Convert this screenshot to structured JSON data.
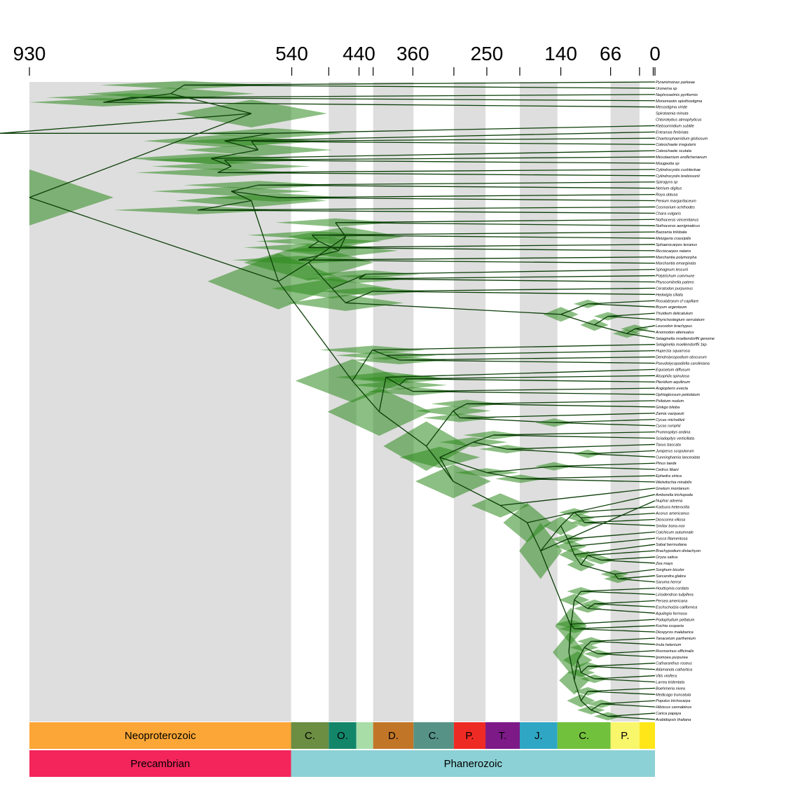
{
  "axis_ticks_labeled": [
    "930",
    "540",
    "440",
    "360",
    "250",
    "140",
    "66",
    "0"
  ],
  "axis": {
    "labeled_values": [
      930,
      540,
      440,
      360,
      250,
      140,
      66,
      0
    ],
    "minor_values": [
      485,
      419,
      299,
      201,
      23,
      2.6
    ]
  },
  "periods": [
    {
      "label": "Neoproterozoic",
      "start": 930,
      "end": 541,
      "color": "#FBA636"
    },
    {
      "label": "C.",
      "start": 541,
      "end": 485,
      "color": "#6B8E42"
    },
    {
      "label": "O.",
      "start": 485,
      "end": 444,
      "color": "#13866A"
    },
    {
      "label": "",
      "start": 444,
      "end": 419,
      "color": "#A8DDA8"
    },
    {
      "label": "D.",
      "start": 419,
      "end": 359,
      "color": "#C17526"
    },
    {
      "label": "C.",
      "start": 359,
      "end": 299,
      "color": "#569386"
    },
    {
      "label": "P.",
      "start": 299,
      "end": 252,
      "color": "#EE2A24"
    },
    {
      "label": "T.",
      "start": 252,
      "end": 201,
      "color": "#7D1A88"
    },
    {
      "label": "J.",
      "start": 201,
      "end": 145,
      "color": "#2FA7C4"
    },
    {
      "label": "C.",
      "start": 145,
      "end": 66,
      "color": "#72C13C"
    },
    {
      "label": "P.",
      "start": 66,
      "end": 23,
      "color": "#F8F66B"
    },
    {
      "label": "",
      "start": 23,
      "end": 0,
      "color": "#FFE619"
    }
  ],
  "eras": [
    {
      "label": "Precambrian",
      "start": 930,
      "end": 541,
      "color": "#F3255B"
    },
    {
      "label": "Phanerozoic",
      "start": 541,
      "end": 0,
      "color": "#8CD1D5"
    }
  ],
  "gray_bands": [
    [
      930,
      541
    ],
    [
      485,
      444
    ],
    [
      419,
      359
    ],
    [
      299,
      252
    ],
    [
      201,
      145
    ],
    [
      66,
      23
    ]
  ],
  "colors": {
    "band": "#DEDEDE",
    "ci": "#2E8B1E",
    "branch": "#0C3F08"
  },
  "taxa": [
    "Pyramimonas parkeae",
    "Uronema sp",
    "Nephroselmis pyriformis",
    "Monomastix opisthostigma",
    "Mesostigma viride",
    "Spirotaenia minuta",
    "Chlorokybus atmophyticus",
    "Klebsormidium subtile",
    "Entransia fimbriata",
    "Chaetosphaeridium globosum",
    "Coleochaete irregularis",
    "Coleochaete scutata",
    "Mesotaenium endlicherianum",
    "Mougeotia sp",
    "Cylindrocystis cushleckae",
    "Cylindrocystis brebissonii",
    "Spirogyra sp",
    "Netrium digitus",
    "Roya obtusa",
    "Penium margaritaceum",
    "Cosmarium ochthodes",
    "Chara vulgaris",
    "Nothoceros vincentianus",
    "Nothoceros aenigmaticus",
    "Bazzania trilobata",
    "Metzgeria crassipilis",
    "Sphaerocarpos texanus",
    "Ricciocarpos natans",
    "Marchantia polymorpha",
    "Marchantia emarginata",
    "Sphagnum lescurii",
    "Polytrichum commune",
    "Physcomitrella patens",
    "Ceratodon purpureus",
    "Hedwigia ciliata",
    "Rosulabryum cf capillare",
    "Bryum argenteum",
    "Thuidium delicatulum",
    "Rhynchostegium serrulatum",
    "Leucodon brachypus",
    "Anomodon attenuatus",
    "Selaginella moellendorffii genome",
    "Selaginella moellendorffii 1kp",
    "Huperzia squarrosa",
    "Dendrolycopodium obscurum",
    "Pseudolycopodiella caroliniana",
    "Equisetum diffusum",
    "Alsophila spinulosa",
    "Pteridium aquilinum",
    "Angiopteris evecta",
    "Ophioglossum petiolatum",
    "Psilotum nudum",
    "Ginkgo biloba",
    "Zamia vazquezii",
    "Cycas micholitzii",
    "Cycas rumphii",
    "Prumnopitys andina",
    "Sciadopitys verticillata",
    "Taxus baccata",
    "Juniperus scopulorum",
    "Cunninghamia lanceolata",
    "Pinus taeda",
    "Cedrus libani",
    "Ephedra sinica",
    "Welwitschia mirabilis",
    "Gnetum montanum",
    "Amborella trichopoda",
    "Nuphar advena",
    "Kadsura heteroclita",
    "Acorus americanus",
    "Dioscorea villosa",
    "Smilax bona-nox",
    "Colchicum autumnale",
    "Yucca filamentosa",
    "Sabal bermudana",
    "Brachypodium distachyon",
    "Oryza sativa",
    "Zea mays",
    "Sorghum bicolor",
    "Sarcandra glabra",
    "Saruma henryi",
    "Houttuynia cordata",
    "Liriodendron tulipifera",
    "Persea americana",
    "Eschscholzia californica",
    "Aquilegia formosa",
    "Podophyllum peltatum",
    "Kochia scoparia",
    "Diospyros malabarica",
    "Tanacetum parthenium",
    "Inula helenium",
    "Rosmarinus officinalis",
    "Ipomoea purpurea",
    "Catharanthus roseus",
    "Allamanda cathartica",
    "Vitis vinifera",
    "Larrea tridentata",
    "Boehmeria nivea",
    "Medicago truncatula",
    "Populus trichocarpa",
    "Hibiscus cannabinus",
    "Carica papaya",
    "Arabidopsis thaliana"
  ],
  "tree": [
    930,
    [
      600,
      [
        720,
        [
          700,
          0,
          1
        ],
        [
          820,
          [
            780,
            2,
            3
          ],
          4
        ]
      ],
      [
        [
          520,
          5,
          6
        ],
        [
          570,
          7,
          [
            640,
            8,
            [
              590,
              [
                600,
                9,
                10
              ],
              [
                660,
                11,
                [
                  630,
                  [
                    640,
                    12,
                    13
                  ],
                  [
                    650,
                    14,
                    15
                  ]
                ]
              ]
            ]
          ]
        ]
      ]
    ],
    [
      560,
      [
        600,
        [
          630,
          [
            590,
            16,
            17
          ],
          [
            560,
            18,
            19
          ]
        ],
        [
          680,
          20,
          21
        ]
      ],
      [
        515,
        [
          460,
          [
            475,
            22,
            23
          ],
          [
            470,
            [
              500,
              [
                510,
                24,
                25
              ],
              [
                515,
                26,
                27
              ]
            ],
            [
              530,
              28,
              29
            ]
          ]
        ],
        [
          480,
          [
            430,
            30,
            [
              440,
              31,
              32
            ]
          ],
          [
            460,
            [
              420,
              33,
              34
            ],
            [
              140,
              [
                100,
                35,
                36
              ],
              [
                90,
                [
                  70,
                  37,
                  38
                ],
                [
                  42,
                  [
                    30,
                    39,
                    40
                  ],
                  41
                ]
              ]
            ]
          ]
        ]
      ],
      [
        450,
        [
          420,
          42,
          [
            400,
            43,
            [
              380,
              44,
              45
            ]
          ]
        ],
        [
          410,
          [
            400,
            46,
            [
              380,
              [
                370,
                47,
                48
              ],
              [
                360,
                49,
                50
              ]
            ]
          ],
          [
            340,
            [
              300,
              [
                280,
                51,
                52
              ],
              [
                290,
                53,
                [
                  150,
                  54,
                  55
                ]
              ]
            ],
            [
              300,
              [
                320,
                [
                  270,
                  [
                    240,
                    56,
                    57
                  ],
                  [
                    220,
                    58,
                    [
                      100,
                      59,
                      60
                    ]
                  ]
                ],
                [
                  250,
                  [
                    150,
                    61,
                    62
                  ],
                  [
                    200,
                    63,
                    64
                  ]
                ]
              ],
              [
                230,
                65,
                [
                  190,
                  66,
                  [
                    170,
                    67,
                    [
                      140,
                      [
                        120,
                        68,
                        [
                          110,
                          69,
                          [
                            105,
                            70,
                            71
                          ]
                        ]
                      ],
                      [
                        130,
                        72,
                        [
                          125,
                          73,
                          [
                            120,
                            74,
                            [
                              110,
                              [
                                100,
                                75,
                                [
                                  80,
                                  76,
                                  77
                                ]
                              ],
                              [
                                60,
                                78,
                                [
                                  55,
                                  79,
                                  80
                                ]
                              ]
                            ]
                          ]
                        ]
                      ]
                    ],
                    [
                      125,
                      [
                        120,
                        [
                          110,
                          81,
                          82
                        ],
                        [
                          100,
                          [
                            90,
                            83,
                            84
                          ],
                          85
                        ]
                      ],
                      [
                        128,
                        [
                          125,
                          86,
                          [
                            120,
                            87,
                            88
                          ]
                        ],
                        [
                          120,
                          [
                            115,
                            [
                              105,
                              [
                                95,
                                89,
                                90
                              ],
                              [
                                85,
                                91,
                                92
                              ]
                            ],
                            [
                              110,
                              [
                                100,
                                93,
                                94
                              ],
                              [
                                90,
                                95,
                                96
                              ]
                            ]
                          ],
                          [
                            110,
                            [
                              100,
                              97,
                              98
                            ],
                            [
                              95,
                              [
                                80,
                                99,
                                100
                              ],
                              [
                                70,
                                101,
                                102
                              ]
                            ]
                          ]
                        ]
                      ]
                    ]
                  ]
                ]
              ]
            ]
          ]
        ]
      ]
    ]
  ]
}
